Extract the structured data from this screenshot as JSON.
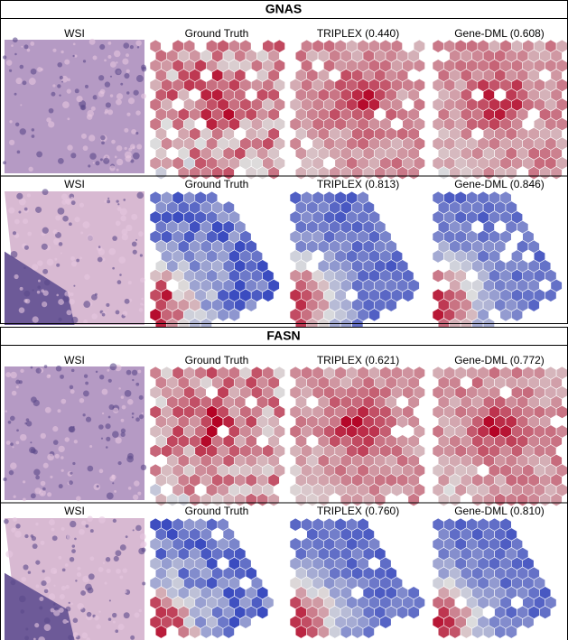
{
  "sections": [
    {
      "title": "GNAS",
      "rows": [
        {
          "panels": [
            "WSI",
            "Ground Truth",
            "TRIPLEX (0.440)",
            "Gene-DML (0.608)"
          ]
        },
        {
          "panels": [
            "WSI",
            "Ground Truth",
            "TRIPLEX (0.813)",
            "Gene-DML (0.846)"
          ]
        }
      ]
    },
    {
      "title": "FASN",
      "rows": [
        {
          "panels": [
            "WSI",
            "Ground Truth",
            "TRIPLEX (0.621)",
            "Gene-DML (0.772)"
          ]
        },
        {
          "panels": [
            "WSI",
            "Ground Truth",
            "TRIPLEX (0.760)",
            "Gene-DML (0.810)"
          ]
        }
      ]
    }
  ]
}
